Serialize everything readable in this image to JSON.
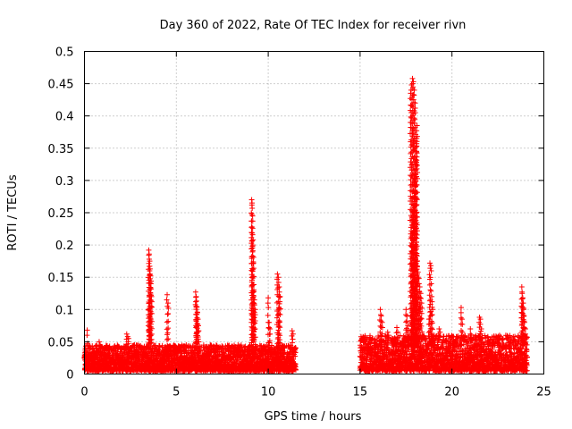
{
  "chart_data": {
    "type": "scatter",
    "title": "Day 360 of 2022, Rate Of TEC Index for receiver rivn",
    "xlabel": "GPS time / hours",
    "ylabel": "ROTI / TECUs",
    "xlim": [
      0,
      25
    ],
    "ylim": [
      0,
      0.5
    ],
    "xticks": [
      0,
      5,
      10,
      15,
      20,
      25
    ],
    "xtick_labels": [
      "0",
      "5",
      "10",
      "15",
      "20",
      "25"
    ],
    "yticks": [
      0,
      0.05,
      0.1,
      0.15,
      0.2,
      0.25,
      0.3,
      0.35,
      0.4,
      0.45,
      0.5
    ],
    "ytick_labels": [
      "0",
      "0.05",
      "0.1",
      "0.15",
      "0.2",
      "0.25",
      "0.3",
      "0.35",
      "0.4",
      "0.45",
      "0.5"
    ],
    "grid": true,
    "marker": "plus",
    "color": "#ff0000",
    "series": [
      {
        "name": "ROTI",
        "baseline_segments": [
          {
            "x_start": 0.0,
            "x_end": 11.5,
            "typical_min": 0.005,
            "typical_max": 0.045
          },
          {
            "x_start": 15.0,
            "x_end": 24.1,
            "typical_min": 0.005,
            "typical_max": 0.06
          }
        ],
        "peaks": [
          {
            "x": [
              0.15,
              0.2,
              0.25
            ],
            "y": [
              0.068,
              0.045,
              0.04
            ]
          },
          {
            "x": [
              0.8,
              0.85
            ],
            "y": [
              0.05,
              0.045
            ]
          },
          {
            "x": [
              2.3,
              2.35,
              2.4
            ],
            "y": [
              0.062,
              0.058,
              0.055
            ]
          },
          {
            "x": [
              3.5,
              3.52,
              3.55,
              3.57,
              3.6,
              3.62,
              3.65,
              3.5,
              3.55
            ],
            "y": [
              0.192,
              0.186,
              0.175,
              0.163,
              0.152,
              0.14,
              0.12,
              0.1,
              0.082
            ]
          },
          {
            "x": [
              4.5,
              4.55
            ],
            "y": [
              0.123,
              0.11
            ]
          },
          {
            "x": [
              6.05,
              6.08,
              6.1,
              6.12,
              6.15,
              6.18,
              6.2,
              6.1
            ],
            "y": [
              0.127,
              0.12,
              0.113,
              0.104,
              0.095,
              0.085,
              0.075,
              0.065
            ]
          },
          {
            "x": [
              9.1,
              9.12,
              9.15,
              9.18,
              9.2,
              9.22,
              9.25,
              9.3,
              9.2
            ],
            "y": [
              0.27,
              0.265,
              0.245,
              0.208,
              0.172,
              0.128,
              0.115,
              0.1,
              0.085
            ]
          },
          {
            "x": [
              10.0,
              10.05,
              10.1
            ],
            "y": [
              0.118,
              0.08,
              0.07
            ]
          },
          {
            "x": [
              10.5,
              10.55,
              10.6,
              10.65,
              10.55
            ],
            "y": [
              0.155,
              0.15,
              0.135,
              0.12,
              0.1
            ]
          },
          {
            "x": [
              11.3,
              11.35
            ],
            "y": [
              0.067,
              0.062
            ]
          },
          {
            "x": [
              16.1,
              16.15,
              16.2
            ],
            "y": [
              0.1,
              0.09,
              0.08
            ]
          },
          {
            "x": [
              16.5,
              16.55
            ],
            "y": [
              0.065,
              0.06
            ]
          },
          {
            "x": [
              17.0,
              17.05
            ],
            "y": [
              0.072,
              0.065
            ]
          },
          {
            "x": [
              17.5,
              17.55,
              17.6
            ],
            "y": [
              0.1,
              0.09,
              0.075
            ]
          },
          {
            "x": [
              17.8,
              17.85,
              17.9,
              17.95,
              18.0,
              18.02,
              18.05,
              18.08,
              18.1,
              18.0,
              17.95,
              17.9,
              17.85,
              17.8,
              17.75,
              17.9,
              18.0
            ],
            "y": [
              0.198,
              0.215,
              0.26,
              0.28,
              0.31,
              0.33,
              0.352,
              0.365,
              0.385,
              0.42,
              0.44,
              0.453,
              0.458,
              0.448,
              0.435,
              0.245,
              0.185
            ]
          },
          {
            "x": [
              18.1,
              18.15,
              18.2,
              18.25,
              18.3,
              18.35,
              18.2
            ],
            "y": [
              0.183,
              0.158,
              0.148,
              0.135,
              0.125,
              0.11,
              0.085
            ]
          },
          {
            "x": [
              18.8,
              18.85,
              18.9,
              18.95,
              18.75
            ],
            "y": [
              0.172,
              0.168,
              0.12,
              0.1,
              0.085
            ]
          },
          {
            "x": [
              19.3,
              19.35
            ],
            "y": [
              0.07,
              0.065
            ]
          },
          {
            "x": [
              20.5,
              20.55
            ],
            "y": [
              0.103,
              0.085
            ]
          },
          {
            "x": [
              21.0,
              21.05
            ],
            "y": [
              0.07,
              0.06
            ]
          },
          {
            "x": [
              21.5,
              21.55,
              21.6
            ],
            "y": [
              0.088,
              0.085,
              0.07
            ]
          },
          {
            "x": [
              23.8,
              23.82,
              23.85,
              23.88,
              23.9,
              23.92,
              23.95,
              24.0
            ],
            "y": [
              0.135,
              0.125,
              0.118,
              0.11,
              0.1,
              0.09,
              0.08,
              0.07
            ]
          }
        ]
      }
    ]
  }
}
